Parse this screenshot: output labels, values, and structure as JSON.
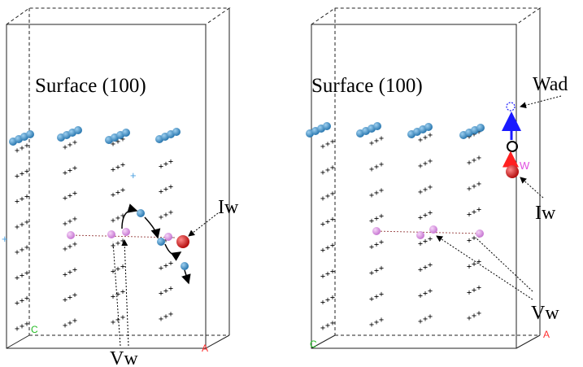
{
  "panels": [
    {
      "title": "Surface (100)",
      "labels": {
        "interstitial": "Iw",
        "vacancy": "Vw"
      },
      "axis_labels": {
        "a": "A",
        "c": "C"
      }
    },
    {
      "title": "Surface (100)",
      "labels": {
        "adatom": "Wad",
        "interstitial": "Iw",
        "vacancy": "Vw",
        "w_tag": "W"
      },
      "axis_labels": {
        "a": "A",
        "c": "C"
      }
    }
  ],
  "colors": {
    "surface_atom": "#3d8fc4",
    "vacancy_atom": "#d88be0",
    "interstitial_atom": "#d42020",
    "adatom_arrow": "#1a1aff",
    "axis_a": "#ff3030",
    "axis_c": "#22bb22"
  }
}
